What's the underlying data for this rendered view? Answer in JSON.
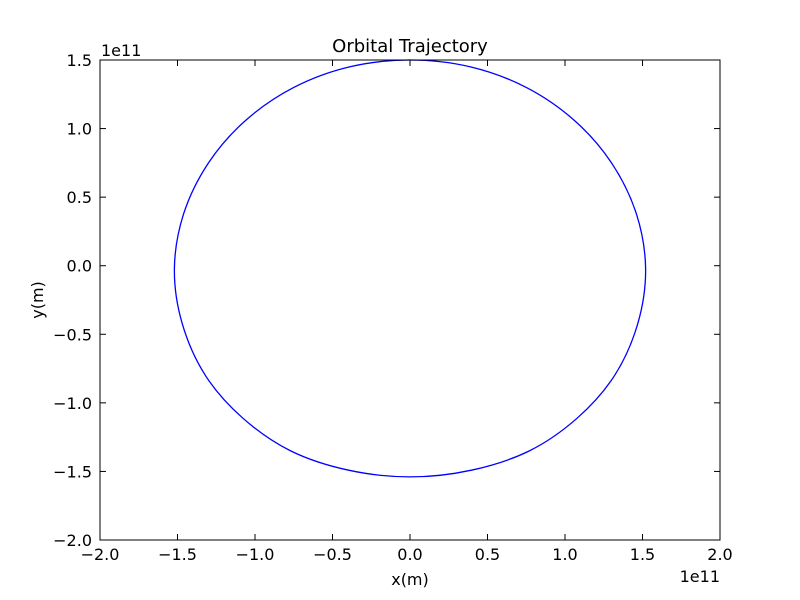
{
  "chart_data": {
    "type": "line",
    "title": "Orbital Trajectory",
    "xlabel": "x(m)",
    "ylabel": "y(m)",
    "xlim": [
      -200000000000.0,
      200000000000.0
    ],
    "ylim": [
      -200000000000.0,
      150000000000.0
    ],
    "x_ticks": [
      -200000000000.0,
      -150000000000.0,
      -100000000000.0,
      -50000000000.0,
      0,
      50000000000.0,
      100000000000.0,
      150000000000.0,
      200000000000.0
    ],
    "x_tick_labels": [
      "−2.0",
      "−1.5",
      "−1.0",
      "−0.5",
      "0.0",
      "0.5",
      "1.0",
      "1.5",
      "2.0"
    ],
    "y_ticks": [
      -200000000000.0,
      -150000000000.0,
      -100000000000.0,
      -50000000000.0,
      0,
      50000000000.0,
      100000000000.0,
      150000000000.0
    ],
    "y_tick_labels": [
      "−2.0",
      "−1.5",
      "−1.0",
      "−0.5",
      "0.0",
      "0.5",
      "1.0",
      "1.5"
    ],
    "x_offset_label": "1e11",
    "y_offset_label": "1e11",
    "grid": false,
    "legend": "none",
    "series": [
      {
        "color": "#0000ff",
        "x": [
          0.0,
          39000000000.0,
          75000000000.0,
          106000000000.0,
          130000000000.0,
          146000000000.0,
          152000000000.0,
          147000000000.0,
          132000000000.0,
          108000000000.0,
          77000000000.0,
          40000000000.0,
          0.0,
          -40000000000.0,
          -77000000000.0,
          -108000000000.0,
          -132000000000.0,
          -147000000000.0,
          -152000000000.0,
          -146000000000.0,
          -130000000000.0,
          -106000000000.0,
          -75000000000.0,
          -39000000000.0,
          0.0
        ],
        "y": [
          150000000000.0,
          145000000000.0,
          130000000000.0,
          106000000000.0,
          75000000000.0,
          38000000000.0,
          -2000000000.0,
          -42000000000.0,
          -80000000000.0,
          -111000000000.0,
          -135000000000.0,
          -149000000000.0,
          -154000000000.0,
          -149000000000.0,
          -135000000000.0,
          -111000000000.0,
          -80000000000.0,
          -42000000000.0,
          -2000000000.0,
          38000000000.0,
          75000000000.0,
          106000000000.0,
          130000000000.0,
          145000000000.0,
          150000000000.0
        ]
      }
    ]
  }
}
